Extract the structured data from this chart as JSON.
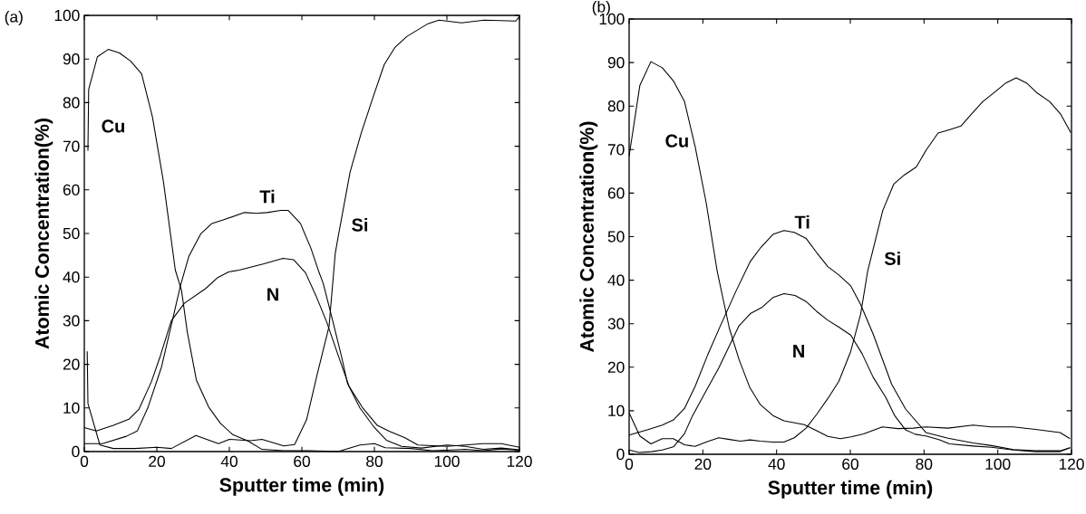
{
  "chart_data": [
    {
      "type": "line",
      "title": "(a)",
      "xlabel": "Sputter time (min)",
      "ylabel": "Atomic Concentration(%)",
      "xlim": [
        0,
        120
      ],
      "ylim": [
        0,
        100
      ],
      "xticks": [
        0,
        20,
        40,
        60,
        80,
        100,
        120
      ],
      "yticks": [
        0,
        10,
        20,
        30,
        40,
        50,
        60,
        70,
        80,
        90,
        100
      ],
      "series": [
        {
          "name": "Cu",
          "color": "#000000",
          "x": [
            1,
            1.2,
            3.6,
            6.6,
            9.7,
            12.8,
            15.8,
            18.8,
            21.8,
            25.1,
            26.8,
            28.4,
            30.9,
            34.3,
            37.5,
            40.9,
            45,
            49,
            55,
            62,
            70,
            76,
            80,
            83,
            90,
            96,
            105,
            110,
            115,
            120
          ],
          "values": [
            69,
            83,
            90.5,
            92.2,
            91.4,
            89.5,
            86.6,
            76.7,
            62,
            41.6,
            37,
            27.4,
            16.4,
            10.2,
            6.5,
            3.9,
            2.5,
            0.5,
            0.2,
            0.2,
            0,
            1.5,
            1.8,
            0.9,
            0.7,
            0.2,
            0.5,
            0.2,
            0.6,
            0.3
          ]
        },
        {
          "name": "Ti",
          "color": "#000000",
          "x": [
            0,
            5,
            11.6,
            14.6,
            17.5,
            21.3,
            24,
            26.5,
            28.8,
            32.1,
            35.2,
            38.3,
            44.2,
            47.5,
            50.4,
            54.2,
            56.2,
            59.6,
            62.5,
            64.6,
            65.9,
            68.5,
            70.9,
            72.6,
            76,
            80,
            83.3,
            87.5,
            93,
            100,
            105,
            110,
            115,
            120
          ],
          "values": [
            1.8,
            1.8,
            3.5,
            4.7,
            10,
            19.4,
            29,
            38,
            44.7,
            49.9,
            52.3,
            53.1,
            54.8,
            54.6,
            54.8,
            55.3,
            55.3,
            52.3,
            46.6,
            41.4,
            38.5,
            30,
            21.9,
            15.6,
            10,
            5.5,
            2.6,
            1.2,
            0.8,
            1.5,
            1.2,
            0.5,
            0.8,
            0.4
          ]
        },
        {
          "name": "N",
          "color": "#000000",
          "x": [
            0,
            3.3,
            8,
            12.3,
            15,
            18.5,
            21,
            24,
            27.6,
            33.5,
            36.8,
            39.8,
            42.7,
            49.3,
            54.8,
            57.7,
            61,
            63.9,
            66.8,
            70.2,
            73,
            76.7,
            80.8,
            84.2,
            88.3,
            92,
            100,
            105,
            110,
            115,
            120
          ],
          "values": [
            5.5,
            4.7,
            6,
            7.4,
            9.6,
            16,
            22,
            30,
            34,
            37.4,
            39.9,
            41.2,
            41.6,
            43,
            44.3,
            44,
            41,
            35.7,
            29.8,
            21.6,
            15,
            10.1,
            6,
            4.6,
            3.2,
            1.5,
            1.2,
            1.5,
            1.8,
            1.8,
            1
          ]
        },
        {
          "name": "Si",
          "color": "#000000",
          "x": [
            0.8,
            1,
            4.3,
            8,
            14,
            20,
            24,
            30.8,
            37,
            40,
            45.8,
            49,
            55,
            58,
            61.3,
            64.2,
            67.5,
            69.2,
            70,
            73.3,
            76.4,
            79.7,
            82.7,
            85.6,
            89,
            94.8,
            97.8,
            104,
            110.3,
            119,
            120
          ],
          "values": [
            23,
            11,
            1.5,
            0.7,
            0.7,
            1,
            0.7,
            3.7,
            1.8,
            2.8,
            2.5,
            2.8,
            1.3,
            1.6,
            7.3,
            17.6,
            28.7,
            45.4,
            49.2,
            64.1,
            73.1,
            81.4,
            88.7,
            92.6,
            95.2,
            98.1,
            98.9,
            98.3,
            98.9,
            98.7,
            99.8
          ]
        }
      ]
    },
    {
      "type": "line",
      "title": "(b)",
      "xlabel": "Sputter time (min)",
      "ylabel": "Atomic Concentration(%)",
      "xlim": [
        0,
        120
      ],
      "ylim": [
        0,
        100
      ],
      "xticks": [
        0,
        20,
        40,
        60,
        80,
        100,
        120
      ],
      "yticks": [
        0,
        10,
        20,
        30,
        40,
        50,
        60,
        70,
        80,
        90,
        100
      ],
      "series": [
        {
          "name": "Cu",
          "color": "#000000",
          "x": [
            0,
            2.9,
            5.9,
            9,
            12,
            15,
            17.9,
            20.9,
            23.9,
            27.2,
            29.8,
            32.7,
            35.6,
            39,
            42,
            47.5,
            50.9,
            53.9,
            57.3,
            60.2,
            63.6,
            68.7,
            72.9,
            77.1,
            80.5,
            86.5,
            93.3,
            98.3,
            104.2,
            110.2,
            116.9,
            119.6
          ],
          "values": [
            68.5,
            84.7,
            90.2,
            88.8,
            85.8,
            81.1,
            70.7,
            57.8,
            42,
            28.9,
            21.8,
            15.4,
            11.4,
            8.9,
            7.7,
            6.8,
            5.4,
            4.1,
            3.6,
            4,
            4.7,
            6.3,
            5.9,
            6,
            6.3,
            6,
            6.7,
            6.3,
            6.3,
            5.7,
            5,
            3.6
          ]
        },
        {
          "name": "Ti",
          "color": "#000000",
          "x": [
            0,
            4.9,
            9,
            12,
            15,
            17.9,
            21.3,
            24.8,
            29,
            32.8,
            35.7,
            39,
            42,
            44.8,
            48,
            50.9,
            53.9,
            56.9,
            60.1,
            62.8,
            66.2,
            71.2,
            75,
            80.5,
            86.5,
            93.3,
            98.3,
            104.2,
            110.2,
            116.9,
            119.6
          ],
          "values": [
            4.4,
            5.6,
            6.7,
            7.9,
            10.5,
            15.6,
            22.8,
            29.6,
            37.5,
            44.2,
            47.5,
            50.5,
            51.4,
            51,
            49.6,
            46.3,
            43.1,
            41.2,
            38.7,
            34.4,
            27.6,
            16.1,
            10.4,
            5,
            3.7,
            2.6,
            2,
            1.1,
            0.8,
            0.8,
            1.5
          ]
        },
        {
          "name": "N",
          "color": "#000000",
          "x": [
            0,
            2.7,
            6.1,
            9,
            12,
            15,
            17.1,
            20.5,
            24.3,
            29.8,
            33,
            36.1,
            39,
            42,
            45,
            48,
            50.9,
            53.9,
            56.9,
            60.1,
            63.2,
            66.2,
            69.6,
            72.1,
            75,
            77.6,
            80.5,
            84,
            86.9,
            93.3,
            98.3,
            104.2,
            110.2,
            116.9,
            119.6
          ],
          "values": [
            1,
            0.4,
            0.6,
            1,
            1.7,
            4.7,
            8.7,
            14,
            19.8,
            29.5,
            32.4,
            33.8,
            36,
            36.9,
            36.5,
            35.1,
            32.8,
            30.8,
            29.2,
            27.4,
            23.1,
            17.7,
            13.1,
            8.8,
            5.6,
            4.6,
            4.2,
            3.4,
            2.4,
            1.9,
            1.6,
            1,
            0.6,
            0.6,
            1.5
          ]
        },
        {
          "name": "Si",
          "color": "#000000",
          "x": [
            0,
            2.9,
            5.9,
            9,
            12,
            15,
            17.9,
            20.9,
            24.3,
            27.2,
            30.2,
            32.8,
            35.6,
            39,
            42,
            44.8,
            48,
            50.9,
            53.9,
            56.9,
            60.1,
            62.8,
            64.7,
            68.8,
            71.8,
            74.7,
            77.9,
            80.6,
            83.8,
            87,
            90,
            92.9,
            95.9,
            99.3,
            102.2,
            105,
            107.8,
            110.7,
            114.1,
            117,
            119.8
          ],
          "values": [
            9.5,
            4.2,
            2.4,
            3.6,
            3.6,
            2.2,
            1.8,
            2.8,
            3.8,
            3.4,
            3,
            3.3,
            3,
            2.8,
            2.8,
            3.8,
            6,
            9.2,
            12.8,
            16.8,
            23.6,
            32.2,
            42,
            56,
            62.1,
            64.2,
            66,
            69.9,
            73.8,
            74.6,
            75.4,
            78.2,
            81,
            83.3,
            85.3,
            86.5,
            85.3,
            83,
            81,
            78.2,
            73.9
          ]
        }
      ]
    }
  ]
}
